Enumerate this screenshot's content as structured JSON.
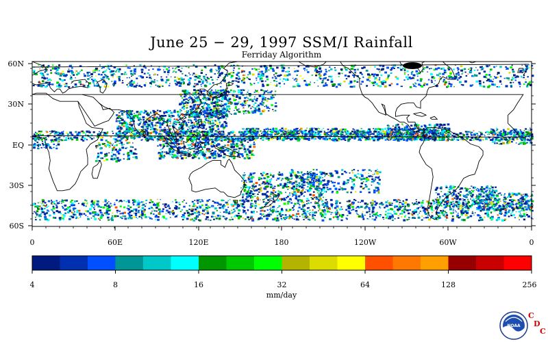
{
  "title": "June 25 − 29, 1997 SSM/I Rainfall",
  "subtitle": "Ferriday Algorithm",
  "lat_labels": [
    "60N",
    "30N",
    "EQ",
    "30S",
    "60S"
  ],
  "lon_labels": [
    "0",
    "60E",
    "120E",
    "180",
    "120W",
    "60W",
    "0"
  ],
  "colorbar": {
    "colors": [
      "#001a80",
      "#0030b0",
      "#0050ff",
      "#009696",
      "#00c8c8",
      "#00ffff",
      "#009600",
      "#00c800",
      "#00ff00",
      "#b4b400",
      "#dcdc00",
      "#ffff00",
      "#ff5000",
      "#ff7800",
      "#ffa000",
      "#960000",
      "#c80000",
      "#ff0000"
    ],
    "tick_labels": [
      "4",
      "8",
      "16",
      "32",
      "64",
      "128",
      "256"
    ],
    "units": "mm/day"
  },
  "logo": {
    "text": "NOAA",
    "cdc_letters": [
      "C",
      "D",
      "C"
    ],
    "icon": "noaa-logo-icon"
  }
}
